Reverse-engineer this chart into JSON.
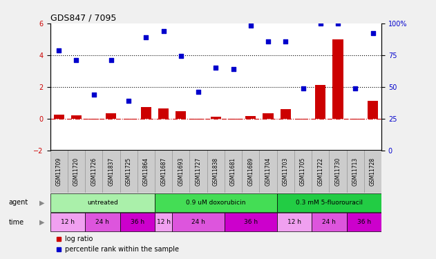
{
  "title": "GDS847 / 7095",
  "samples": [
    "GSM11709",
    "GSM11720",
    "GSM11726",
    "GSM11837",
    "GSM11725",
    "GSM11864",
    "GSM11687",
    "GSM11693",
    "GSM11727",
    "GSM11838",
    "GSM11681",
    "GSM11689",
    "GSM11704",
    "GSM11703",
    "GSM11705",
    "GSM11722",
    "GSM11730",
    "GSM11713",
    "GSM11728"
  ],
  "log_ratio": [
    0.25,
    0.2,
    -0.05,
    0.35,
    -0.05,
    0.7,
    0.65,
    0.45,
    -0.08,
    0.1,
    -0.08,
    0.15,
    0.35,
    0.6,
    -0.05,
    2.1,
    5.0,
    -0.08,
    1.1
  ],
  "percentile_rank": [
    4.3,
    3.7,
    1.5,
    3.7,
    1.1,
    5.1,
    5.5,
    3.95,
    1.7,
    3.2,
    3.1,
    5.85,
    4.85,
    4.85,
    1.9,
    6.0,
    6.0,
    1.9,
    5.4
  ],
  "ylim_left": [
    -2,
    6
  ],
  "yticks_left": [
    -2,
    0,
    2,
    4,
    6
  ],
  "yticks_right_labels": [
    "0",
    "25",
    "50",
    "75",
    "100%"
  ],
  "bar_color": "#cc0000",
  "dot_color": "#0000cc",
  "agent_groups": [
    {
      "label": "untreated",
      "start": 0,
      "end": 6,
      "color": "#aaf0aa"
    },
    {
      "label": "0.9 uM doxorubicin",
      "start": 6,
      "end": 13,
      "color": "#44dd55"
    },
    {
      "label": "0.3 mM 5-fluorouracil",
      "start": 13,
      "end": 19,
      "color": "#22cc44"
    }
  ],
  "time_groups": [
    {
      "label": "12 h",
      "start": 0,
      "end": 2,
      "color": "#f0a0f0"
    },
    {
      "label": "24 h",
      "start": 2,
      "end": 4,
      "color": "#dd55dd"
    },
    {
      "label": "36 h",
      "start": 4,
      "end": 6,
      "color": "#cc00cc"
    },
    {
      "label": "12 h",
      "start": 6,
      "end": 7,
      "color": "#f0a0f0"
    },
    {
      "label": "24 h",
      "start": 7,
      "end": 10,
      "color": "#dd55dd"
    },
    {
      "label": "36 h",
      "start": 10,
      "end": 13,
      "color": "#cc00cc"
    },
    {
      "label": "12 h",
      "start": 13,
      "end": 15,
      "color": "#f0a0f0"
    },
    {
      "label": "24 h",
      "start": 15,
      "end": 17,
      "color": "#dd55dd"
    },
    {
      "label": "36 h",
      "start": 17,
      "end": 19,
      "color": "#cc00cc"
    }
  ],
  "bg_color": "#f0f0f0",
  "label_color": "#888888",
  "xticklabel_bg": "#cccccc"
}
